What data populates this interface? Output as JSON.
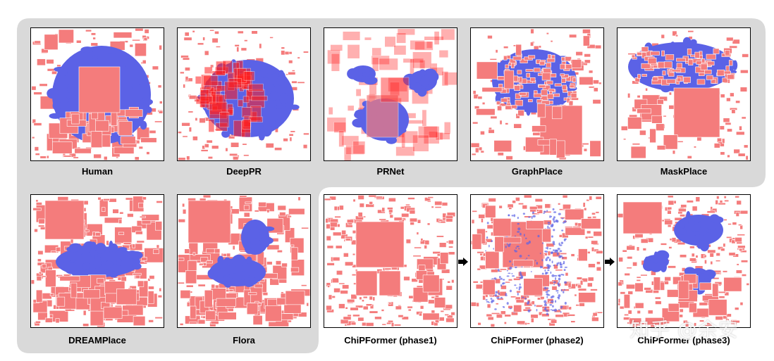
{
  "colors": {
    "background_group": "#d9d9d9",
    "macro": "#f47c7c",
    "macro_dense": "#ff2020",
    "cells": "#5b62e6"
  },
  "panels": [
    {
      "id": "human",
      "label": "Human",
      "row": 0,
      "col": 0,
      "style": "human"
    },
    {
      "id": "deeppr",
      "label": "DeepPR",
      "row": 0,
      "col": 1,
      "style": "deeppr"
    },
    {
      "id": "prnet",
      "label": "PRNet",
      "row": 0,
      "col": 2,
      "style": "prnet"
    },
    {
      "id": "graphplace",
      "label": "GraphPlace",
      "row": 0,
      "col": 3,
      "style": "graphplace"
    },
    {
      "id": "maskplace",
      "label": "MaskPlace",
      "row": 0,
      "col": 4,
      "style": "maskplace"
    },
    {
      "id": "dreamplace",
      "label": "DREAMPlace",
      "row": 1,
      "col": 0,
      "style": "dreamplace"
    },
    {
      "id": "flora",
      "label": "Flora",
      "row": 1,
      "col": 1,
      "style": "flora"
    },
    {
      "id": "chipformer1",
      "label": "ChiPFormer (phase1)",
      "row": 1,
      "col": 2,
      "style": "phase1"
    },
    {
      "id": "chipformer2",
      "label": "ChiPFormer (phase2)",
      "row": 1,
      "col": 3,
      "style": "phase2"
    },
    {
      "id": "chipformer3",
      "label": "ChiPFormer (phase3)",
      "row": 1,
      "col": 4,
      "style": "phase3"
    }
  ],
  "watermark": "知乎 @余安"
}
